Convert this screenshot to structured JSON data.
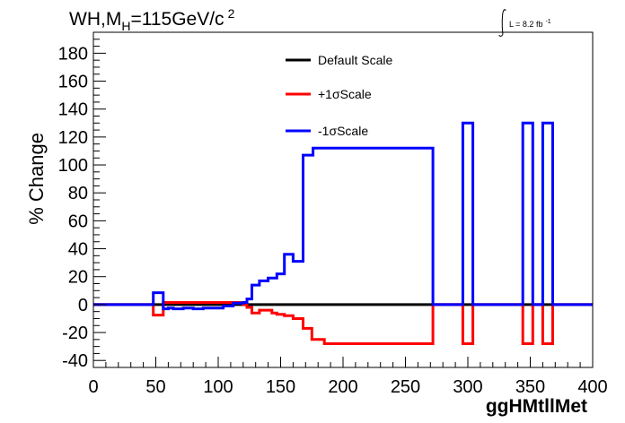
{
  "chart_data": {
    "type": "line",
    "title": "WH,M",
    "title_sub": "H",
    "title_rest": "=115GeV/c",
    "title_sup": "2",
    "lumi_label": "L = 8.2 fb",
    "lumi_sup": "-1",
    "xlabel": "ggHMtllMet",
    "ylabel": "% Change",
    "xlim": [
      0,
      400
    ],
    "ylim": [
      -45,
      195
    ],
    "x_ticks": [
      0,
      50,
      100,
      150,
      200,
      250,
      300,
      350,
      400
    ],
    "x_tick_labels": [
      "0",
      "50",
      "100",
      "150",
      "200",
      "250",
      "300",
      "350",
      "400"
    ],
    "y_ticks": [
      -40,
      -20,
      0,
      20,
      40,
      60,
      80,
      100,
      120,
      140,
      160,
      180
    ],
    "y_tick_labels": [
      "-40",
      "-20",
      "0",
      "20",
      "40",
      "60",
      "80",
      "100",
      "120",
      "140",
      "160",
      "180"
    ],
    "legend_position": "top-center",
    "series": [
      {
        "name": "Default Scale",
        "color": "#000000",
        "edges": [
          0,
          400
        ],
        "values": [
          0
        ]
      },
      {
        "name": "+1σScale",
        "color": "#ff0000",
        "edges": [
          0,
          48,
          56,
          120,
          123,
          127,
          133,
          143,
          147,
          153,
          160,
          168,
          175,
          185,
          272,
          296,
          304,
          344,
          352,
          360,
          368,
          400
        ],
        "values": [
          0,
          -7.5,
          1.5,
          0,
          -2,
          -6,
          -4,
          -6,
          -7,
          -8,
          -10,
          -17,
          -25,
          -28,
          0,
          -28,
          0,
          -28,
          0,
          -28,
          0
        ]
      },
      {
        "name": "-1σScale",
        "color": "#0000ff",
        "edges": [
          0,
          48,
          56,
          60,
          64,
          72,
          80,
          88,
          104,
          112,
          120,
          123,
          127,
          133,
          140,
          147,
          153,
          160,
          168,
          176,
          272,
          296,
          304,
          344,
          352,
          360,
          368,
          400
        ],
        "values": [
          0,
          8.5,
          -3,
          -2.5,
          -3,
          -2.5,
          -3,
          -2.5,
          -1,
          1,
          1.5,
          4,
          14,
          17,
          19,
          22,
          36,
          31,
          107,
          112,
          0,
          130,
          0,
          130,
          0,
          130,
          0
        ]
      }
    ]
  }
}
